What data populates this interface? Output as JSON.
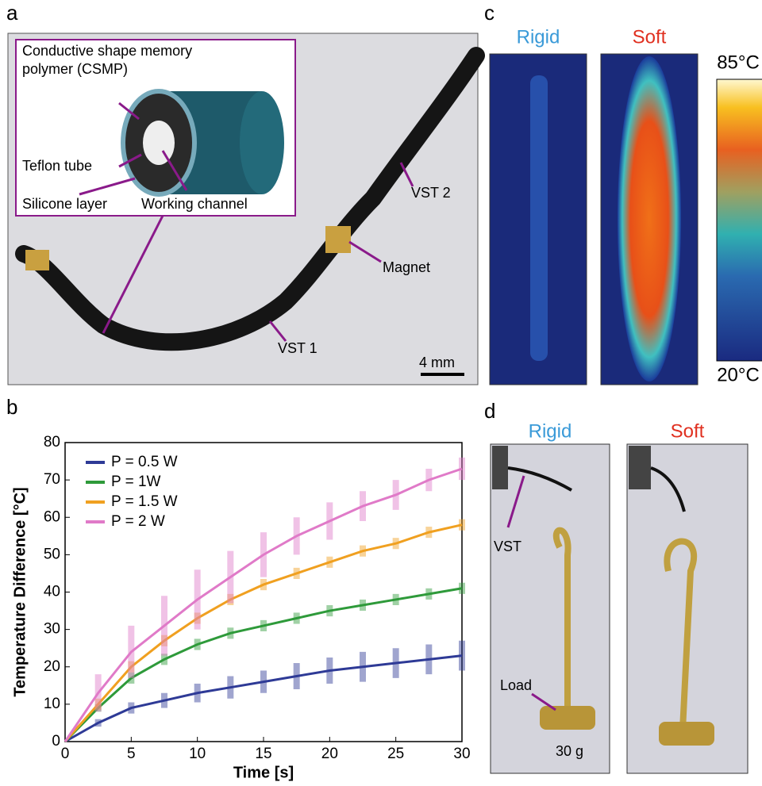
{
  "panels": {
    "a": {
      "letter": "a",
      "inset_lines": [
        "Conductive shape memory",
        "polymer (CSMP)"
      ],
      "teflon": "Teflon tube",
      "silicone": "Silicone layer",
      "channel": "Working channel",
      "vst2": "VST 2",
      "magnet": "Magnet",
      "vst1": "VST 1",
      "scale": "4 mm"
    },
    "b": {
      "letter": "b"
    },
    "c": {
      "letter": "c",
      "rigid": "Rigid",
      "soft": "Soft",
      "max": "85°C",
      "min": "20°C"
    },
    "d": {
      "letter": "d",
      "rigid": "Rigid",
      "soft": "Soft",
      "vst": "VST",
      "load": "Load",
      "mass": "30 g"
    }
  },
  "chart_data": {
    "type": "line",
    "x_label": "Time [s]",
    "y_label": "Temperature Difference [°C]",
    "x": [
      0,
      2.5,
      5,
      7.5,
      10,
      12.5,
      15,
      17.5,
      20,
      22.5,
      25,
      27.5,
      30
    ],
    "series": [
      {
        "name": "P = 0.5 W",
        "color": "#2e3a96",
        "values": [
          0,
          5,
          9,
          11,
          13,
          14.5,
          16,
          17.5,
          19,
          20,
          21,
          22,
          23
        ],
        "errors": [
          0,
          1,
          1.5,
          2,
          2.5,
          3,
          3,
          3.5,
          3.5,
          4,
          4,
          4,
          4
        ]
      },
      {
        "name": "P = 1W",
        "color": "#2e9a3a",
        "values": [
          0,
          9,
          17,
          22,
          26,
          29,
          31,
          33,
          35,
          36.5,
          38,
          39.5,
          41
        ],
        "errors": [
          0,
          1,
          1.5,
          1.5,
          1.5,
          1.5,
          1.5,
          1.5,
          1.5,
          1.5,
          1.5,
          1.5,
          1.5
        ]
      },
      {
        "name": "P = 1.5 W",
        "color": "#f0a020",
        "values": [
          0,
          10,
          20,
          27,
          33,
          38,
          42,
          45,
          48,
          51,
          53,
          56,
          58
        ],
        "errors": [
          0,
          1.5,
          1.5,
          1.5,
          1.5,
          1.5,
          1.5,
          1.5,
          1.5,
          1.5,
          1.5,
          1.5,
          1.5
        ]
      },
      {
        "name": "P = 2 W",
        "color": "#e07ac8",
        "values": [
          0,
          13,
          24,
          31,
          38,
          44,
          50,
          55,
          59,
          63,
          66,
          70,
          73
        ],
        "errors": [
          0,
          5,
          7,
          8,
          8,
          7,
          6,
          5,
          5,
          4,
          4,
          3,
          3
        ]
      }
    ],
    "xlim": [
      0,
      30
    ],
    "ylim": [
      0,
      80
    ],
    "xticks": [
      0,
      5,
      10,
      15,
      20,
      25,
      30
    ],
    "yticks": [
      0,
      10,
      20,
      30,
      40,
      50,
      60,
      70,
      80
    ]
  }
}
